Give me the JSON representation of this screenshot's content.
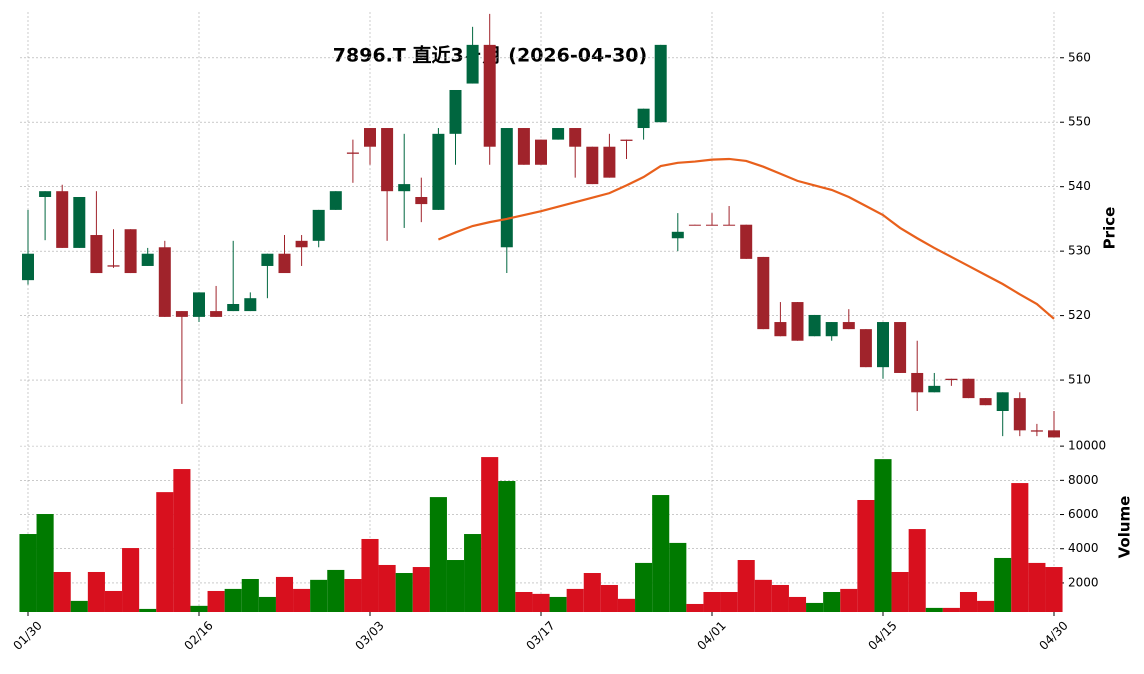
{
  "chart_data": {
    "type": "candlestick",
    "title": "7896.T  直近3ヶ月  (2026-04-30)",
    "categories": [
      "01/30",
      null,
      null,
      null,
      null,
      null,
      null,
      null,
      null,
      null,
      "02/16",
      null,
      null,
      null,
      null,
      null,
      null,
      null,
      null,
      null,
      "03/03",
      null,
      null,
      null,
      null,
      null,
      null,
      null,
      null,
      null,
      "03/17",
      null,
      null,
      null,
      null,
      null,
      null,
      null,
      null,
      null,
      "04/01",
      null,
      null,
      null,
      null,
      null,
      null,
      null,
      null,
      null,
      "04/15",
      null,
      null,
      null,
      null,
      null,
      null,
      null,
      null,
      null,
      "04/30"
    ],
    "open": [
      525.5,
      538.4,
      539.3,
      530.5,
      532.5,
      527.8,
      533.4,
      527.7,
      530.6,
      520.7,
      519.8,
      520.7,
      520.7,
      520.7,
      527.7,
      529.6,
      531.6,
      531.6,
      536.4,
      545.3,
      549.1,
      549.1,
      539.3,
      538.4,
      536.4,
      548.2,
      556.0,
      562.0,
      530.6,
      549.1,
      547.3,
      547.3,
      549.1,
      546.2,
      546.2,
      547.3,
      549.1,
      550.0,
      532.0,
      534.1,
      534.1,
      534.1,
      534.1,
      529.1,
      519.0,
      522.1,
      516.8,
      516.8,
      519.0,
      517.9,
      512.0,
      519.0,
      511.1,
      508.1,
      510.2,
      510.2,
      507.2,
      505.2,
      507.2,
      502.2,
      502.2
    ],
    "high": [
      536.4,
      539.3,
      540.3,
      538.4,
      539.3,
      533.4,
      533.4,
      530.5,
      531.6,
      520.7,
      523.6,
      524.6,
      531.6,
      523.6,
      529.6,
      532.5,
      532.5,
      536.4,
      539.3,
      547.3,
      549.1,
      549.1,
      548.2,
      541.4,
      549.1,
      555.0,
      564.8,
      566.8,
      549.1,
      549.1,
      547.3,
      549.1,
      549.1,
      546.2,
      548.2,
      547.3,
      552.1,
      562.0,
      535.9,
      534.1,
      535.9,
      537.0,
      534.1,
      529.1,
      522.1,
      522.1,
      520.1,
      519.0,
      521.0,
      517.9,
      519.0,
      519.0,
      516.1,
      511.1,
      510.2,
      510.2,
      507.2,
      508.1,
      508.1,
      503.2,
      505.2
    ],
    "low": [
      524.8,
      531.7,
      530.5,
      530.5,
      526.6,
      527.4,
      526.6,
      527.7,
      519.8,
      506.3,
      519.0,
      519.8,
      520.7,
      520.7,
      522.7,
      526.6,
      527.7,
      530.6,
      536.4,
      540.6,
      543.4,
      531.6,
      533.6,
      534.5,
      536.4,
      543.4,
      556.0,
      543.4,
      526.6,
      543.4,
      543.4,
      547.3,
      541.4,
      540.4,
      541.4,
      544.3,
      547.3,
      550.0,
      530.0,
      534.0,
      534.0,
      534.0,
      528.8,
      517.9,
      516.8,
      516.1,
      516.8,
      516.1,
      517.9,
      512.0,
      510.2,
      511.1,
      505.2,
      508.1,
      509.1,
      507.2,
      506.1,
      501.3,
      501.3,
      501.3,
      501.1
    ],
    "close": [
      529.6,
      539.3,
      530.5,
      538.4,
      526.6,
      527.6,
      526.6,
      529.6,
      519.8,
      519.8,
      523.6,
      519.8,
      521.8,
      522.7,
      529.6,
      526.6,
      530.6,
      536.4,
      539.3,
      545.1,
      546.2,
      539.3,
      540.4,
      537.3,
      548.2,
      555.0,
      562.0,
      546.2,
      549.1,
      543.4,
      543.4,
      549.1,
      546.2,
      540.4,
      541.4,
      547.1,
      552.1,
      562.0,
      533.0,
      534.0,
      534.0,
      534.0,
      528.8,
      517.9,
      516.8,
      516.1,
      520.1,
      519.0,
      517.9,
      512.0,
      519.0,
      511.1,
      508.1,
      509.1,
      510.0,
      507.2,
      506.1,
      508.1,
      502.2,
      502.0,
      501.1
    ],
    "ma": [
      null,
      null,
      null,
      null,
      null,
      null,
      null,
      null,
      null,
      null,
      null,
      null,
      null,
      null,
      null,
      null,
      null,
      null,
      null,
      null,
      null,
      null,
      null,
      null,
      531.8,
      532.9,
      533.9,
      534.5,
      535.0,
      535.6,
      536.2,
      536.9,
      537.6,
      538.3,
      539.0,
      540.2,
      541.5,
      543.2,
      543.7,
      543.9,
      544.2,
      544.3,
      544.0,
      543.1,
      542.0,
      540.9,
      540.2,
      539.5,
      538.4,
      537.0,
      535.6,
      533.6,
      532.0,
      530.5,
      529.1,
      527.7,
      526.3,
      524.9,
      523.3,
      521.8,
      519.5
    ],
    "volume": [
      4860,
      6030,
      2640,
      950,
      2640,
      1530,
      4040,
      480,
      7310,
      8660,
      660,
      1530,
      1650,
      2230,
      1180,
      2350,
      1650,
      2180,
      2760,
      2230,
      4570,
      3050,
      2580,
      2930,
      7020,
      3340,
      4860,
      9360,
      7960,
      1470,
      1360,
      1180,
      1650,
      2580,
      1880,
      1070,
      3170,
      7140,
      4340,
      770,
      1470,
      1470,
      3340,
      2180,
      1880,
      1180,
      830,
      1470,
      1650,
      6850,
      9240,
      2640,
      5150,
      540,
      540,
      1470,
      950,
      3460,
      7840,
      3170,
      2930
    ],
    "up_color": "#00663f",
    "down_color": "#a0232b",
    "volume_up_color": "#007a00",
    "volume_down_color": "#d8101e",
    "ma_color": "#e8601c",
    "ylabel": "Price",
    "ylim": [
      500.7,
      567.1
    ],
    "yticks": [
      510,
      520,
      530,
      540,
      550,
      560
    ],
    "volume_label": "Volume",
    "volume_ylim": [
      300,
      10300
    ],
    "volume_ticks": [
      2000,
      4000,
      6000,
      8000,
      10000
    ],
    "grid": true
  }
}
